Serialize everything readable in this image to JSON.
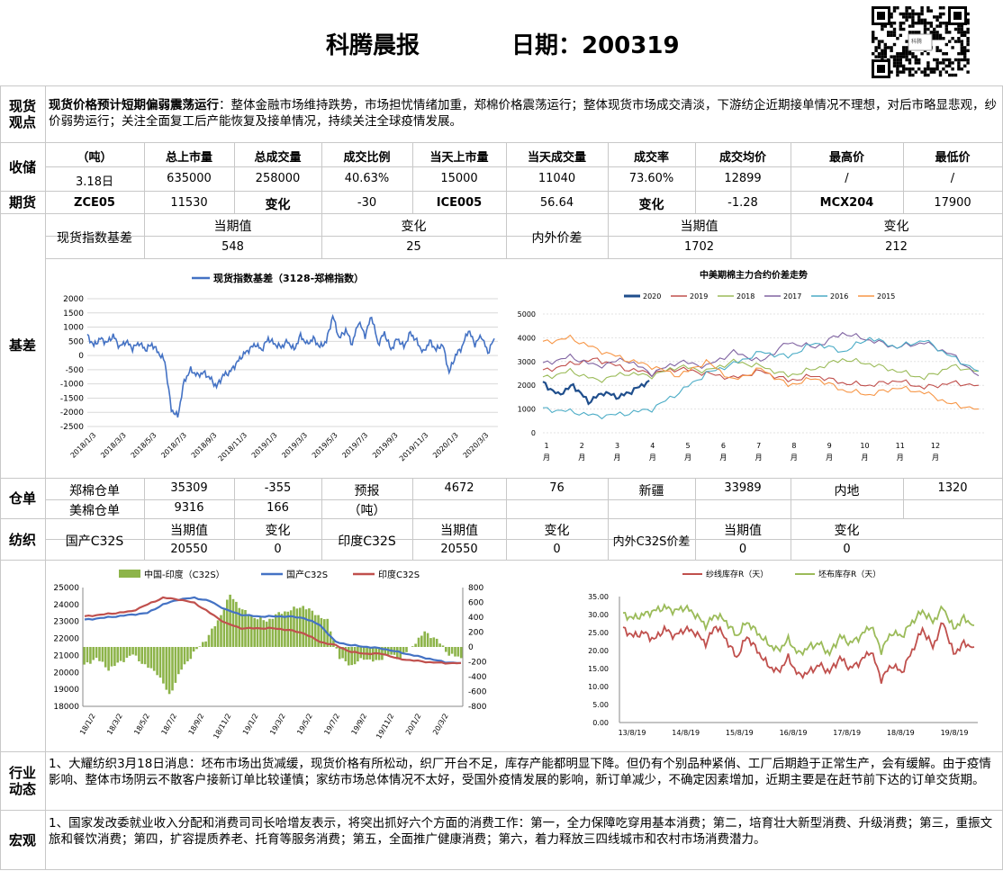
{
  "header": {
    "title": "科腾晨报",
    "date_label": "日期：200319",
    "qr_caption": "科腾"
  },
  "sections": {
    "spot_view": [
      "现货",
      "观点"
    ],
    "storage": "收储",
    "futures": "期货",
    "basis": "基差",
    "warehouse": "仓单",
    "yarn": "纺织",
    "industry": [
      "行业",
      "动态"
    ],
    "macro": "宏观"
  },
  "spot_view": {
    "bold": "现货价格预计短期偏弱震荡运行",
    "text": "：整体金融市场维持跌势，市场担忧情绪加重，郑棉价格震荡运行；整体现货市场成交清淡，下游纺企近期接单情况不理想，对后市略显悲观，纱价弱势运行；关注全面复工后产能恢复及接单情况，持续关注全球疫情发展。"
  },
  "storage": {
    "headers": [
      "（吨）",
      "总上市量",
      "总成交量",
      "成交比例",
      "当天上市量",
      "当天成交量",
      "成交率",
      "成交均价",
      "最高价",
      "最低价"
    ],
    "row": [
      "3.18日",
      "635000",
      "258000",
      "40.63%",
      "15000",
      "11040",
      "73.60%",
      "12899",
      "/",
      "/"
    ]
  },
  "futures": {
    "row": [
      "ZCE05",
      "11530",
      "变化",
      "-30",
      "ICE005",
      "56.64",
      "变化",
      "-1.28",
      "MCX204",
      "17900"
    ]
  },
  "basis": {
    "label": "现货指数基差",
    "cur_label": "当期值",
    "chg_label": "变化",
    "cur": "548",
    "chg": "25",
    "label2": "内外价差",
    "cur_label2": "当期值",
    "chg_label2": "变化",
    "cur2": "1702",
    "chg2": "212"
  },
  "warehouse": {
    "row1": [
      "郑棉仓单",
      "35309",
      "-355",
      "预报",
      "4672",
      "76",
      "新疆",
      "33989",
      "内地",
      "1320"
    ],
    "row2": [
      "美棉仓单",
      "9316",
      "166",
      "（吨）"
    ]
  },
  "yarn": {
    "domestic": "国产C32S",
    "india": "印度C32S",
    "spread": "内外C32S价差",
    "cur_label": "当期值",
    "chg_label": "变化",
    "domestic_cur": "20550",
    "domestic_chg": "0",
    "india_cur": "20550",
    "india_chg": "0",
    "spread_cur": "0",
    "spread_chg": "0"
  },
  "industry": {
    "text": "1、大耀纺织3月18日消息：坯布市场出货减缓，现货价格有所松动，织厂开台不足，库存产能都明显下降。但仍有个别品种紧俏、工厂后期趋于正常生产，会有缓解。由于疫情影响、整体市场阴云不散客户接新订单比较谨慎；家纺市场总体情况不太好，受国外疫情发展的影响，新订单减少，不确定因素增加，近期主要是在赶节前下达的订单交货期。"
  },
  "macro": {
    "text": "1、国家发改委就业收入分配和消费司司长哈增友表示，将突出抓好六个方面的消费工作：第一，全力保障吃穿用基本消费；第二，培育壮大新型消费、升级消费；第三，重振文旅和餐饮消费；第四，扩容提质养老、托育等服务消费；第五，全面推广健康消费；第六，着力释放三四线城市和农村市场消费潜力。"
  },
  "chart_data": [
    {
      "type": "line",
      "title": "",
      "series": [
        {
          "name": "现货指数基差（3128-郑棉指数）",
          "color": "#4472c4",
          "values": [
            700,
            350,
            600,
            450,
            700,
            300,
            500,
            250,
            450,
            200,
            400,
            100,
            -200,
            -1900,
            -2150,
            -900,
            -500,
            -700,
            -600,
            -800,
            -1100,
            -700,
            -600,
            -300,
            0,
            200,
            400,
            200,
            600,
            400,
            300,
            500,
            200,
            700,
            400,
            600,
            300,
            500,
            1400,
            600,
            900,
            400,
            1200,
            700,
            1400,
            400,
            800,
            200,
            600,
            300,
            800,
            500,
            100,
            500,
            200,
            400,
            -600,
            0,
            300,
            900,
            400,
            700,
            100,
            600
          ]
        }
      ],
      "ylim": [
        -2500,
        2000
      ],
      "yticks": [
        "2000",
        "1500",
        "1000",
        "500",
        "0",
        "-500",
        "-1000",
        "-1500",
        "-2000",
        "-2500"
      ],
      "xticks": [
        "2018/1/3",
        "2018/3/3",
        "2018/5/3",
        "2018/7/3",
        "2018/9/3",
        "2018/11/3",
        "2019/1/3",
        "2019/3/3",
        "2019/5/3",
        "2019/7/3",
        "2019/9/3",
        "2019/11/3",
        "2020/1/3",
        "2020/3/3"
      ]
    },
    {
      "type": "line",
      "title": "中美期棉主力合约价差走势",
      "ylim": [
        0,
        5000
      ],
      "yticks": [
        "5000",
        "4000",
        "3000",
        "2000",
        "1000",
        "0"
      ],
      "xticks": [
        "1月",
        "2月",
        "3月",
        "4月",
        "5月",
        "6月",
        "7月",
        "8月",
        "9月",
        "10月",
        "11月",
        "12月"
      ],
      "series": [
        {
          "name": "2020",
          "color": "#1f4e8c",
          "values": [
            2100,
            1600,
            2000,
            1300,
            1700,
            1500,
            1800,
            2200
          ]
        },
        {
          "name": "2019",
          "color": "#c0504d",
          "values": [
            2600,
            2900,
            3100,
            2700,
            2500,
            2700,
            2500,
            2300,
            2600,
            2200,
            2400,
            2100,
            2000,
            2200,
            1900,
            2100,
            2000
          ]
        },
        {
          "name": "2018",
          "color": "#9bbb59",
          "values": [
            2300,
            2600,
            2200,
            2500,
            2400,
            2800,
            2600,
            3000,
            2800,
            2400,
            2700,
            3100,
            2900,
            2600,
            2300,
            2800,
            2600
          ]
        },
        {
          "name": "2017",
          "color": "#8064a2",
          "values": [
            2900,
            3200,
            2800,
            3100,
            2500,
            3000,
            2800,
            3400,
            3000,
            3800,
            3600,
            4200,
            3900,
            3600,
            3800,
            3300,
            2400
          ]
        },
        {
          "name": "2016",
          "color": "#4bacc6",
          "values": [
            1000,
            900,
            700,
            800,
            1000,
            1700,
            2500,
            2900,
            3400,
            3200,
            3800,
            3400,
            4000,
            3600,
            3900,
            3200,
            2600
          ]
        },
        {
          "name": "2015",
          "color": "#f79646",
          "values": [
            3800,
            4000,
            3500,
            3100,
            2800,
            2400,
            3000,
            2200,
            2700,
            2000,
            2300,
            1800,
            1600,
            1900,
            1700,
            1200,
            1000
          ]
        }
      ]
    },
    {
      "type": "line",
      "title": "",
      "ylim": [
        18000,
        25000
      ],
      "y2lim": [
        -800,
        800
      ],
      "yticks": [
        "25000",
        "24000",
        "23000",
        "22000",
        "21000",
        "20000",
        "19000",
        "18000"
      ],
      "y2ticks": [
        "800",
        "600",
        "400",
        "200",
        "0",
        "-200",
        "-400",
        "-600",
        "-800"
      ],
      "xticks": [
        "18/1/2",
        "18/3/2",
        "18/5/2",
        "18/7/2",
        "18/9/2",
        "18/11/2",
        "19/1/2",
        "19/3/2",
        "19/5/2",
        "19/7/2",
        "19/9/2",
        "19/11/2",
        "20/1/2",
        "20/3/2"
      ],
      "series": [
        {
          "name": "中国-印度（C32S）",
          "color": "#8db44a",
          "type": "bar",
          "values": [
            -250,
            -150,
            -300,
            -200,
            -100,
            -250,
            -350,
            -650,
            -300,
            -80,
            100,
            350,
            700,
            500,
            400,
            350,
            450,
            500,
            550,
            450,
            350,
            -150,
            -250,
            -150,
            -200,
            -100,
            -150,
            20,
            200,
            100,
            -100,
            -150
          ]
        },
        {
          "name": "国产C32S",
          "color": "#4472c4",
          "values": [
            23100,
            23200,
            23300,
            23400,
            23500,
            24000,
            24300,
            24400,
            24200,
            23700,
            23400,
            23300,
            23300,
            23300,
            23200,
            22800,
            21800,
            21600,
            21500,
            21400,
            21200,
            21000,
            20800,
            20600,
            20550
          ]
        },
        {
          "name": "印度C32S",
          "color": "#c0504d",
          "values": [
            23300,
            23400,
            23500,
            23600,
            24000,
            24400,
            24300,
            24100,
            23500,
            22900,
            22600,
            22600,
            22600,
            22500,
            22300,
            21800,
            21600,
            21200,
            21100,
            21100,
            20800,
            20700,
            20600,
            20550,
            20550
          ]
        }
      ]
    },
    {
      "type": "line",
      "title": "",
      "ylim": [
        0,
        35
      ],
      "yticks": [
        "35.00",
        "30.00",
        "25.00",
        "20.00",
        "15.00",
        "10.00",
        "5.00",
        "0.00"
      ],
      "xticks": [
        "13/8/19",
        "14/8/19",
        "15/8/19",
        "16/8/19",
        "17/8/19",
        "18/8/19",
        "19/8/19"
      ],
      "series": [
        {
          "name": "纱线库存R（天）",
          "color": "#c0504d",
          "values": [
            26,
            24,
            25,
            23,
            26,
            24,
            26,
            25,
            22,
            27,
            23,
            18,
            24,
            20,
            16,
            14,
            18,
            13,
            14,
            16,
            14,
            18,
            15,
            17,
            20,
            12,
            16,
            14,
            20,
            26,
            21,
            28,
            19,
            22,
            21
          ]
        },
        {
          "name": "坯布库存R（天）",
          "color": "#9bbb59",
          "values": [
            30,
            29,
            30,
            31,
            32,
            31,
            32,
            30,
            27,
            30,
            28,
            24,
            28,
            25,
            22,
            20,
            23,
            19,
            21,
            22,
            19,
            24,
            22,
            24,
            27,
            20,
            25,
            24,
            28,
            31,
            28,
            32,
            26,
            29,
            27
          ]
        }
      ]
    }
  ]
}
